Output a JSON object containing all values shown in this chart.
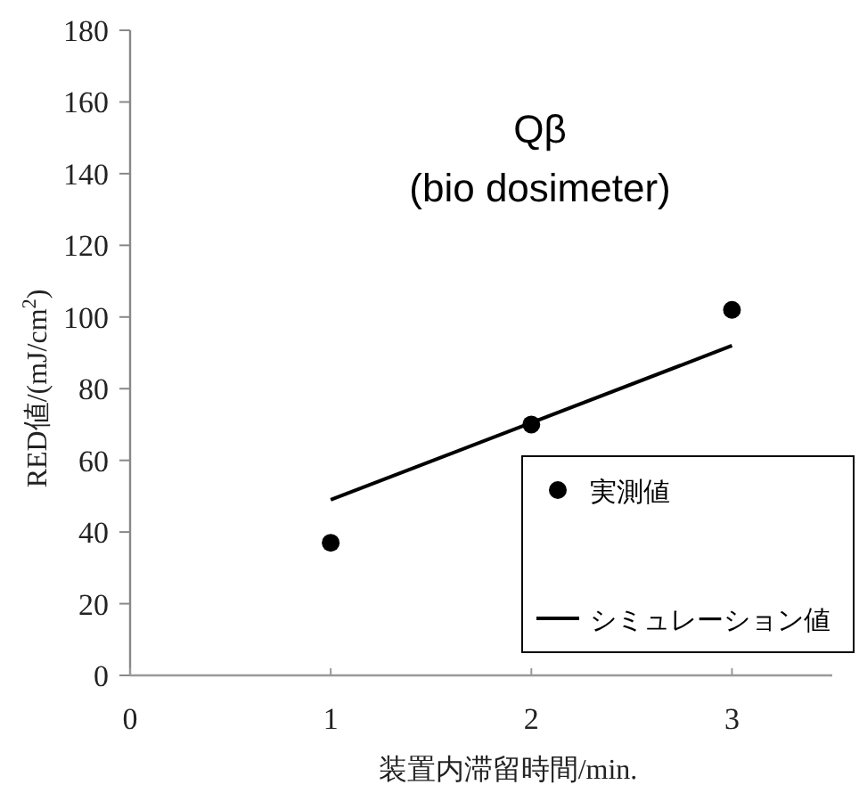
{
  "chart_data": {
    "type": "scatter",
    "title": "Qβ",
    "subtitle": "(bio dosimeter)",
    "xlabel": "装置内滞留時間/min.",
    "ylabel": "RED値/(mJ/cm$^{2}$)",
    "xlim": [
      0,
      3.5
    ],
    "xticks": [
      0,
      1,
      2,
      3
    ],
    "ylim": [
      0,
      180
    ],
    "yticks": [
      0,
      20,
      40,
      60,
      80,
      100,
      120,
      140,
      160,
      180
    ],
    "legend": "bottom right",
    "series": [
      {
        "name": "実測値",
        "color": "#000000",
        "marker": "circle",
        "x": [
          1,
          2,
          3
        ],
        "values": [
          37,
          70,
          102
        ]
      },
      {
        "name": "シミュレーション値",
        "type": "line",
        "color": "#000000",
        "line_style": "solid",
        "x": [
          1,
          3
        ],
        "values": [
          49,
          92
        ]
      }
    ]
  }
}
